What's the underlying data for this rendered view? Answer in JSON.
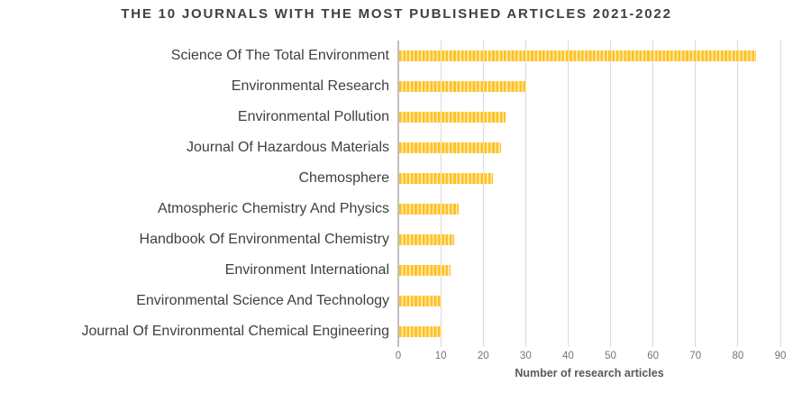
{
  "title": "THE 10 JOURNALS WITH THE MOST PUBLISHED ARTICLES 2021-2022",
  "chart_data": {
    "type": "bar",
    "orientation": "horizontal",
    "title": "THE 10 JOURNALS WITH THE MOST PUBLISHED ARTICLES 2021-2022",
    "categories": [
      "Science Of The Total Environment",
      "Environmental Research",
      "Environmental Pollution",
      "Journal Of Hazardous Materials",
      "Chemosphere",
      "Atmospheric Chemistry And Physics",
      "Handbook Of Environmental Chemistry",
      "Environment International",
      "Environmental Science And Technology",
      "Journal Of Environmental Chemical Engineering"
    ],
    "values": [
      84,
      30,
      25,
      24,
      22,
      14,
      13,
      12,
      10,
      10
    ],
    "xlabel": "Number of research articles",
    "ylabel": "",
    "x_ticks": [
      0,
      10,
      20,
      30,
      40,
      50,
      60,
      70,
      80,
      90
    ],
    "xlim": [
      0,
      90
    ],
    "grid": "vertical-only",
    "legend": "none",
    "colors": {
      "bar_stripe_dark": "#FFC125",
      "bar_stripe_light": "#FFE9A6",
      "gridline": "#D9D9D9",
      "axis_line": "#BFBFBF",
      "title_text": "#3F3F3F",
      "category_text": "#404040",
      "tick_text": "#757575",
      "axis_title_text": "#595959"
    }
  }
}
